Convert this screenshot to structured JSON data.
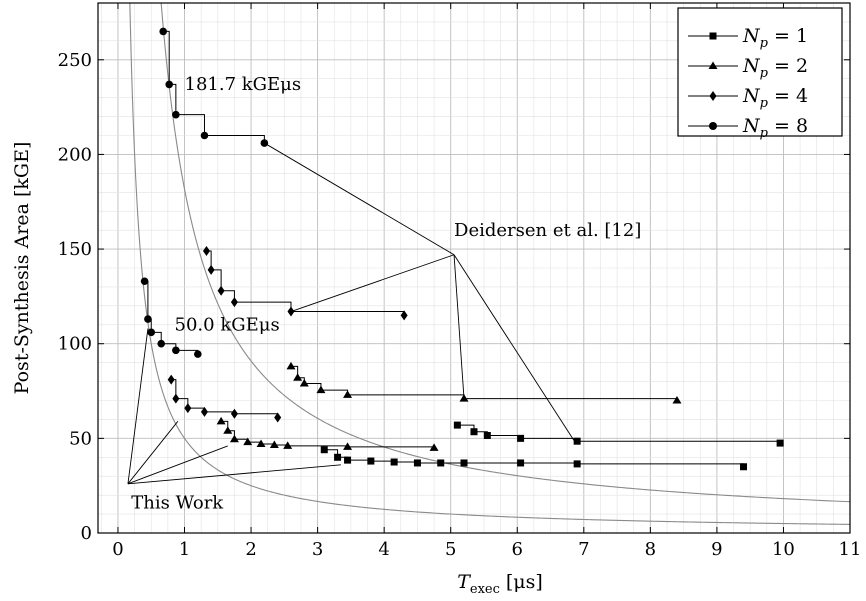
{
  "chart_data": {
    "type": "line",
    "xlabel_main": "T",
    "xlabel_sub": "exec",
    "xlabel_unit": "[μs]",
    "ylabel": "Post-Synthesis Area [kGE]",
    "xlim": [
      -0.3,
      11
    ],
    "ylim": [
      0,
      280
    ],
    "xticks": [
      0,
      1,
      2,
      3,
      4,
      5,
      6,
      7,
      8,
      9,
      10,
      11
    ],
    "yticks": [
      0,
      50,
      100,
      150,
      200,
      250
    ],
    "grid": true,
    "legend_position": "top-right",
    "iso_curves": [
      {
        "product": 181.7,
        "label": "181.7 kGEμs"
      },
      {
        "product": 50.0,
        "label": "50.0 kGEμs"
      }
    ],
    "series": [
      {
        "name": "N_p = 1",
        "legend_label": "N",
        "legend_sub": "p",
        "legend_val": " = 1",
        "marker": "square",
        "groups": [
          {
            "x": [
              3.1,
              3.3,
              3.45,
              3.8,
              4.15,
              4.5,
              4.85,
              5.2,
              6.05,
              6.9,
              9.4
            ],
            "y": [
              44,
              40,
              38.5,
              38,
              37.5,
              37,
              37,
              37,
              37,
              36.5,
              35
            ]
          },
          {
            "x": [
              5.1,
              5.35,
              5.55,
              6.05,
              6.9,
              9.95
            ],
            "y": [
              57,
              53.5,
              51.5,
              50,
              48.5,
              47.5
            ]
          }
        ]
      },
      {
        "name": "N_p = 2",
        "legend_label": "N",
        "legend_sub": "p",
        "legend_val": " = 2",
        "marker": "triangle",
        "groups": [
          {
            "x": [
              1.55,
              1.65,
              1.75,
              1.95,
              2.15,
              2.35,
              2.55,
              3.45,
              4.75
            ],
            "y": [
              59,
              54,
              49.5,
              48,
              47,
              46.5,
              46,
              45.5,
              45
            ]
          },
          {
            "x": [
              2.6,
              2.7,
              2.8,
              3.05,
              3.45,
              5.2,
              8.4
            ],
            "y": [
              88,
              82,
              79,
              75.5,
              73,
              71,
              70
            ]
          }
        ]
      },
      {
        "name": "N_p = 4",
        "legend_label": "N",
        "legend_sub": "p",
        "legend_val": " = 4",
        "marker": "diamond",
        "groups": [
          {
            "x": [
              0.8,
              0.87,
              1.05,
              1.3,
              1.75,
              2.4
            ],
            "y": [
              81,
              71,
              66,
              64,
              63,
              61
            ]
          },
          {
            "x": [
              1.33,
              1.4,
              1.55,
              1.75,
              2.6,
              4.3
            ],
            "y": [
              149,
              139,
              128,
              122,
              117,
              115
            ]
          }
        ]
      },
      {
        "name": "N_p = 8",
        "legend_label": "N",
        "legend_sub": "p",
        "legend_val": " = 8",
        "marker": "circle",
        "groups": [
          {
            "x": [
              0.4,
              0.45,
              0.5,
              0.65,
              0.87,
              1.2
            ],
            "y": [
              133,
              113,
              106,
              100,
              96.5,
              94.5
            ]
          },
          {
            "x": [
              0.68,
              0.77,
              0.87,
              1.3,
              2.2
            ],
            "y": [
              265,
              237,
              221,
              210,
              206
            ]
          }
        ]
      }
    ],
    "annotations": [
      {
        "text": "181.7 kGEμs",
        "x": 1.0,
        "y": 234
      },
      {
        "text": "50.0 kGEμs",
        "x": 0.85,
        "y": 107
      },
      {
        "text": "Deidersen et al. [12]",
        "x": 5.05,
        "y": 157
      },
      {
        "text": "This Work",
        "x": 0.2,
        "y": 13
      }
    ]
  }
}
